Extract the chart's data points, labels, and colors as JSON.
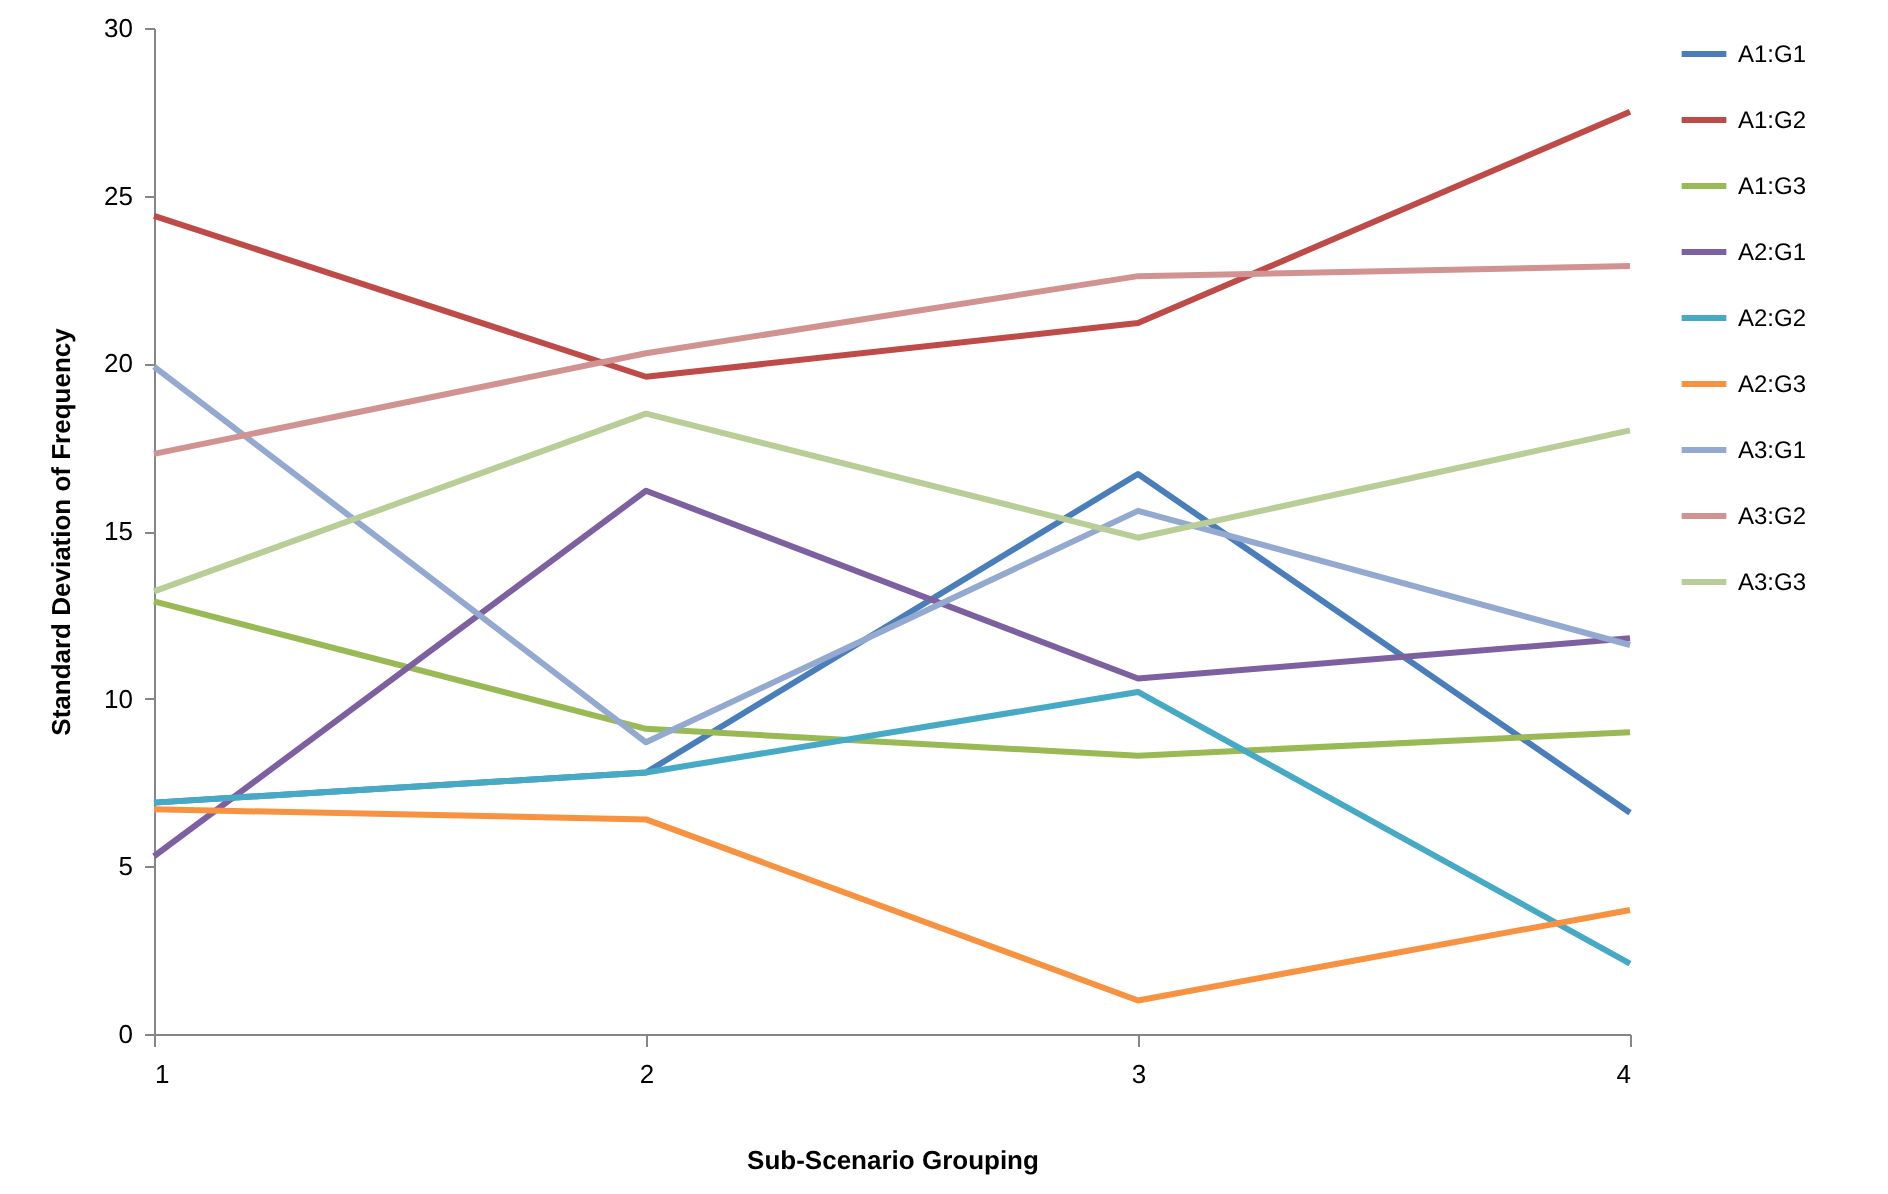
{
  "chart_data": {
    "type": "line",
    "xlabel": "Sub-Scenario Grouping",
    "ylabel": "Standard Deviation of Frequency",
    "x": [
      1,
      2,
      3,
      4
    ],
    "xlim": [
      1,
      4
    ],
    "xticks": [
      1,
      2,
      3,
      4
    ],
    "ylim": [
      0,
      30
    ],
    "yticks": [
      0,
      5,
      10,
      15,
      20,
      25,
      30
    ],
    "grid": false,
    "legend": "right",
    "marker": "none",
    "line_style": "solid",
    "series": [
      {
        "name": "A1:G1",
        "color": "#4a7ebb",
        "values": [
          6.9,
          7.8,
          16.7,
          6.6
        ]
      },
      {
        "name": "A1:G2",
        "color": "#be4b48",
        "values": [
          24.4,
          19.6,
          21.2,
          27.5
        ]
      },
      {
        "name": "A1:G3",
        "color": "#98b954",
        "values": [
          12.9,
          9.1,
          8.3,
          9.0
        ]
      },
      {
        "name": "A2:G1",
        "color": "#7d60a0",
        "values": [
          5.3,
          16.2,
          10.6,
          11.8
        ]
      },
      {
        "name": "A2:G2",
        "color": "#46aac5",
        "values": [
          6.9,
          7.8,
          10.2,
          2.1
        ]
      },
      {
        "name": "A2:G3",
        "color": "#f69240",
        "values": [
          6.7,
          6.4,
          1.0,
          3.7
        ]
      },
      {
        "name": "A3:G1",
        "color": "#93a9cf",
        "values": [
          19.9,
          8.7,
          15.6,
          11.6
        ]
      },
      {
        "name": "A3:G2",
        "color": "#d19392",
        "values": [
          17.3,
          20.3,
          22.6,
          22.9
        ]
      },
      {
        "name": "A3:G3",
        "color": "#b9cd96",
        "values": [
          13.2,
          18.5,
          14.8,
          18.0
        ]
      }
    ]
  }
}
